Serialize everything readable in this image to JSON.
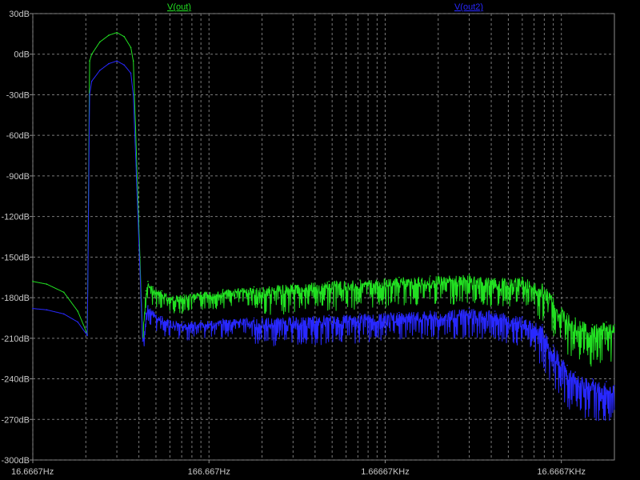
{
  "chart_data": {
    "type": "line",
    "title": "",
    "xlabel": "",
    "ylabel": "",
    "x_scale": "log",
    "xlim": [
      16.6667,
      33333
    ],
    "ylim": [
      -300,
      30
    ],
    "grid": true,
    "legend": "top",
    "x_ticks": [
      {
        "value": 16.6667,
        "label": "16.6667Hz"
      },
      {
        "value": 166.667,
        "label": "166.667Hz"
      },
      {
        "value": 1666.67,
        "label": "1.66667KHz"
      },
      {
        "value": 16666.7,
        "label": "16.6667KHz"
      }
    ],
    "y_ticks": [
      {
        "value": 30,
        "label": "30dB"
      },
      {
        "value": 0,
        "label": "0dB"
      },
      {
        "value": -30,
        "label": "-30dB"
      },
      {
        "value": -60,
        "label": "-60dB"
      },
      {
        "value": -90,
        "label": "-90dB"
      },
      {
        "value": -120,
        "label": "-120dB"
      },
      {
        "value": -150,
        "label": "-150dB"
      },
      {
        "value": -180,
        "label": "-180dB"
      },
      {
        "value": -210,
        "label": "-210dB"
      },
      {
        "value": -240,
        "label": "-240dB"
      },
      {
        "value": -270,
        "label": "-270dB"
      },
      {
        "value": -300,
        "label": "-300dB"
      }
    ],
    "series": [
      {
        "name": "V(out)",
        "color": "#22e022",
        "x": [
          16.67,
          20,
          25,
          30,
          34,
          35,
          36,
          40,
          45,
          50,
          55,
          60,
          62,
          70,
          73,
          75,
          80,
          90,
          100,
          120,
          150,
          200,
          300,
          500,
          800,
          1200,
          2000,
          3000,
          5000,
          7000,
          10000,
          13000,
          15000,
          18000,
          20000,
          25000,
          30000,
          33333
        ],
        "y": [
          -168,
          -170,
          -176,
          -190,
          -207,
          -5,
          0,
          9,
          14,
          16,
          13,
          5,
          -5,
          -210,
          -175,
          -168,
          -172,
          -175,
          -178,
          -178,
          -176,
          -174,
          -172,
          -170,
          -168,
          -167,
          -165,
          -164,
          -163,
          -166,
          -165,
          -170,
          -178,
          -192,
          -195,
          -200,
          -198,
          -200
        ]
      },
      {
        "name": "V(out2)",
        "color": "#2828ff",
        "x": [
          16.67,
          20,
          25,
          30,
          34,
          35,
          36,
          40,
          45,
          50,
          55,
          60,
          62,
          70,
          73,
          75,
          80,
          90,
          100,
          120,
          150,
          200,
          300,
          500,
          800,
          1200,
          2000,
          3000,
          5000,
          7000,
          10000,
          13000,
          15000,
          18000,
          20000,
          25000,
          30000,
          33333
        ],
        "y": [
          -188,
          -189,
          -192,
          -198,
          -208,
          -30,
          -20,
          -12,
          -7,
          -5,
          -8,
          -14,
          -30,
          -212,
          -192,
          -186,
          -190,
          -194,
          -197,
          -198,
          -197,
          -196,
          -195,
          -194,
          -193,
          -192,
          -191,
          -190,
          -188,
          -190,
          -194,
          -200,
          -215,
          -230,
          -235,
          -240,
          -242,
          -245
        ]
      }
    ]
  }
}
